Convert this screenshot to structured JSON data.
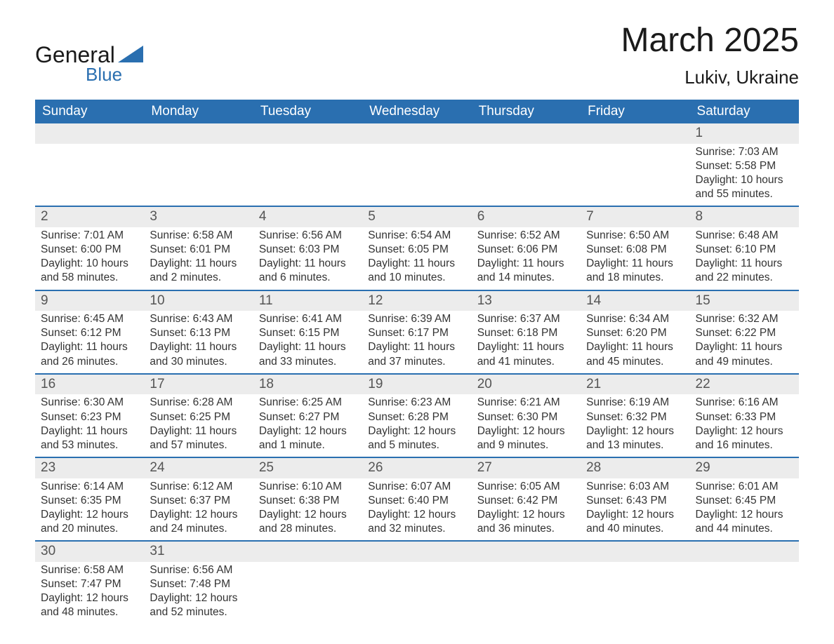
{
  "logo": {
    "general": "General",
    "blue": "Blue",
    "tri_color": "#2a6fb0"
  },
  "header": {
    "month": "March 2025",
    "location": "Lukiv, Ukraine"
  },
  "colors": {
    "header_bg": "#2a6fb0",
    "header_text": "#ffffff",
    "daynum_bg": "#ececec",
    "row_divider": "#2a6fb0",
    "text": "#333333",
    "bg": "#ffffff"
  },
  "typography": {
    "month_fontsize": 48,
    "location_fontsize": 26,
    "weekday_fontsize": 19,
    "daynum_fontsize": 19,
    "body_fontsize": 15.5
  },
  "weekdays": [
    "Sunday",
    "Monday",
    "Tuesday",
    "Wednesday",
    "Thursday",
    "Friday",
    "Saturday"
  ],
  "labels": {
    "sunrise": "Sunrise:",
    "sunset": "Sunset:",
    "daylight": "Daylight:"
  },
  "weeks": [
    [
      null,
      null,
      null,
      null,
      null,
      null,
      {
        "n": "1",
        "sr": "7:03 AM",
        "ss": "5:58 PM",
        "dl1": "10 hours",
        "dl2": "and 55 minutes."
      }
    ],
    [
      {
        "n": "2",
        "sr": "7:01 AM",
        "ss": "6:00 PM",
        "dl1": "10 hours",
        "dl2": "and 58 minutes."
      },
      {
        "n": "3",
        "sr": "6:58 AM",
        "ss": "6:01 PM",
        "dl1": "11 hours",
        "dl2": "and 2 minutes."
      },
      {
        "n": "4",
        "sr": "6:56 AM",
        "ss": "6:03 PM",
        "dl1": "11 hours",
        "dl2": "and 6 minutes."
      },
      {
        "n": "5",
        "sr": "6:54 AM",
        "ss": "6:05 PM",
        "dl1": "11 hours",
        "dl2": "and 10 minutes."
      },
      {
        "n": "6",
        "sr": "6:52 AM",
        "ss": "6:06 PM",
        "dl1": "11 hours",
        "dl2": "and 14 minutes."
      },
      {
        "n": "7",
        "sr": "6:50 AM",
        "ss": "6:08 PM",
        "dl1": "11 hours",
        "dl2": "and 18 minutes."
      },
      {
        "n": "8",
        "sr": "6:48 AM",
        "ss": "6:10 PM",
        "dl1": "11 hours",
        "dl2": "and 22 minutes."
      }
    ],
    [
      {
        "n": "9",
        "sr": "6:45 AM",
        "ss": "6:12 PM",
        "dl1": "11 hours",
        "dl2": "and 26 minutes."
      },
      {
        "n": "10",
        "sr": "6:43 AM",
        "ss": "6:13 PM",
        "dl1": "11 hours",
        "dl2": "and 30 minutes."
      },
      {
        "n": "11",
        "sr": "6:41 AM",
        "ss": "6:15 PM",
        "dl1": "11 hours",
        "dl2": "and 33 minutes."
      },
      {
        "n": "12",
        "sr": "6:39 AM",
        "ss": "6:17 PM",
        "dl1": "11 hours",
        "dl2": "and 37 minutes."
      },
      {
        "n": "13",
        "sr": "6:37 AM",
        "ss": "6:18 PM",
        "dl1": "11 hours",
        "dl2": "and 41 minutes."
      },
      {
        "n": "14",
        "sr": "6:34 AM",
        "ss": "6:20 PM",
        "dl1": "11 hours",
        "dl2": "and 45 minutes."
      },
      {
        "n": "15",
        "sr": "6:32 AM",
        "ss": "6:22 PM",
        "dl1": "11 hours",
        "dl2": "and 49 minutes."
      }
    ],
    [
      {
        "n": "16",
        "sr": "6:30 AM",
        "ss": "6:23 PM",
        "dl1": "11 hours",
        "dl2": "and 53 minutes."
      },
      {
        "n": "17",
        "sr": "6:28 AM",
        "ss": "6:25 PM",
        "dl1": "11 hours",
        "dl2": "and 57 minutes."
      },
      {
        "n": "18",
        "sr": "6:25 AM",
        "ss": "6:27 PM",
        "dl1": "12 hours",
        "dl2": "and 1 minute."
      },
      {
        "n": "19",
        "sr": "6:23 AM",
        "ss": "6:28 PM",
        "dl1": "12 hours",
        "dl2": "and 5 minutes."
      },
      {
        "n": "20",
        "sr": "6:21 AM",
        "ss": "6:30 PM",
        "dl1": "12 hours",
        "dl2": "and 9 minutes."
      },
      {
        "n": "21",
        "sr": "6:19 AM",
        "ss": "6:32 PM",
        "dl1": "12 hours",
        "dl2": "and 13 minutes."
      },
      {
        "n": "22",
        "sr": "6:16 AM",
        "ss": "6:33 PM",
        "dl1": "12 hours",
        "dl2": "and 16 minutes."
      }
    ],
    [
      {
        "n": "23",
        "sr": "6:14 AM",
        "ss": "6:35 PM",
        "dl1": "12 hours",
        "dl2": "and 20 minutes."
      },
      {
        "n": "24",
        "sr": "6:12 AM",
        "ss": "6:37 PM",
        "dl1": "12 hours",
        "dl2": "and 24 minutes."
      },
      {
        "n": "25",
        "sr": "6:10 AM",
        "ss": "6:38 PM",
        "dl1": "12 hours",
        "dl2": "and 28 minutes."
      },
      {
        "n": "26",
        "sr": "6:07 AM",
        "ss": "6:40 PM",
        "dl1": "12 hours",
        "dl2": "and 32 minutes."
      },
      {
        "n": "27",
        "sr": "6:05 AM",
        "ss": "6:42 PM",
        "dl1": "12 hours",
        "dl2": "and 36 minutes."
      },
      {
        "n": "28",
        "sr": "6:03 AM",
        "ss": "6:43 PM",
        "dl1": "12 hours",
        "dl2": "and 40 minutes."
      },
      {
        "n": "29",
        "sr": "6:01 AM",
        "ss": "6:45 PM",
        "dl1": "12 hours",
        "dl2": "and 44 minutes."
      }
    ],
    [
      {
        "n": "30",
        "sr": "6:58 AM",
        "ss": "7:47 PM",
        "dl1": "12 hours",
        "dl2": "and 48 minutes."
      },
      {
        "n": "31",
        "sr": "6:56 AM",
        "ss": "7:48 PM",
        "dl1": "12 hours",
        "dl2": "and 52 minutes."
      },
      null,
      null,
      null,
      null,
      null
    ]
  ]
}
